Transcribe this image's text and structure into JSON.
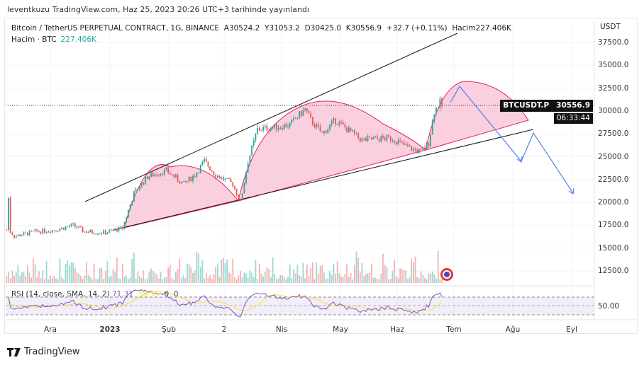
{
  "header": {
    "published": "leventkuzu TradingView.com, Haz 25, 2023 20:26 UTC+3 tarihinde yayınlandı"
  },
  "legend": {
    "symbol": "Bitcoin / TetherUS PERPETUAL CONTRACT, 1G, BINANCE",
    "open": "A30524.2",
    "high": "Y31053.2",
    "low": "D30425.0",
    "close": "K30556.9",
    "change": "+32.7 (+0.11%)",
    "volume": "Hacim227.406K",
    "volume_label": "Hacim · BTC",
    "volume_value": "227.406K"
  },
  "price_axis": {
    "currency": "USDT",
    "ticks": [
      "37500.0",
      "35000.0",
      "32500.0",
      "30000.0",
      "27500.0",
      "25000.0",
      "22500.0",
      "20000.0",
      "17500.0",
      "15000.0",
      "12500.0"
    ]
  },
  "price_label": {
    "symbol": "BTCUSDT.P",
    "price": "30556.9",
    "countdown": "06:33:44"
  },
  "rsi": {
    "label": "RSI (14, close, SMA, 14, 2)",
    "value": "71.31",
    "sma": "58.55",
    "extra1": "0",
    "extra2": "0",
    "tick": "50.00"
  },
  "time_axis": [
    "Ara",
    "2023",
    "Şub",
    "2",
    "Nis",
    "May",
    "Haz",
    "Tem",
    "Ağu",
    "Eyl"
  ],
  "brand": "TradingView",
  "colors": {
    "up": "#26a69a",
    "down": "#ef5350",
    "rsi": "#7e57c2",
    "rsi_sma": "#f5e142",
    "pattern": "#f8bbd0",
    "arrow": "#4a86e8"
  },
  "chart_data": {
    "type": "candlestick",
    "title": "Bitcoin / TetherUS PERPETUAL CONTRACT, 1G, BINANCE",
    "x_unit": "days since 2022-12-01",
    "ylim": [
      11000,
      39000
    ],
    "waypoints": [
      [
        -23,
        17000
      ],
      [
        -22,
        20500
      ],
      [
        -21,
        16800
      ],
      [
        -19,
        16300
      ],
      [
        -8,
        16800
      ],
      [
        3,
        17000
      ],
      [
        12,
        17500
      ],
      [
        18,
        16800
      ],
      [
        29,
        16700
      ],
      [
        38,
        17200
      ],
      [
        44,
        21000
      ],
      [
        51,
        22800
      ],
      [
        61,
        23500
      ],
      [
        70,
        22000
      ],
      [
        76,
        23000
      ],
      [
        81,
        24500
      ],
      [
        87,
        23000
      ],
      [
        96,
        22000
      ],
      [
        100,
        20000
      ],
      [
        104,
        24500
      ],
      [
        109,
        28000
      ],
      [
        117,
        28200
      ],
      [
        126,
        28500
      ],
      [
        134,
        30200
      ],
      [
        137,
        29000
      ],
      [
        143,
        27500
      ],
      [
        150,
        29000
      ],
      [
        156,
        28000
      ],
      [
        164,
        26800
      ],
      [
        175,
        27000
      ],
      [
        180,
        27000
      ],
      [
        188,
        26000
      ],
      [
        195,
        25500
      ],
      [
        199,
        26500
      ],
      [
        202,
        30000
      ],
      [
        205,
        30900
      ],
      [
        206,
        30556.9
      ]
    ]
  }
}
